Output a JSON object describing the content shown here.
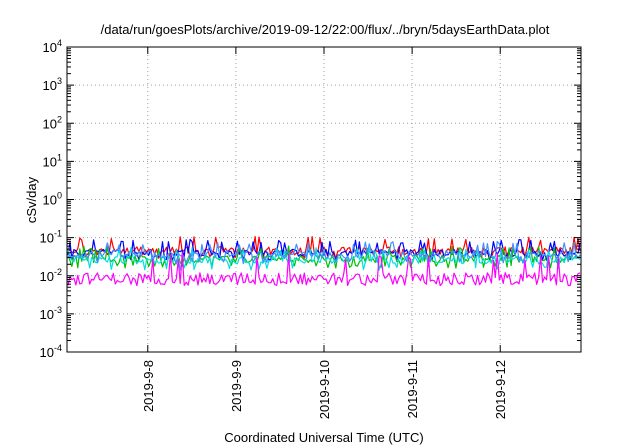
{
  "chart_data": {
    "type": "line",
    "title": "/data/run/goesPlots/archive/2019-09-12/22:00/flux/../bryn/5daysEarthData.plot",
    "xlabel": "Coordinated Universal Time (UTC)",
    "ylabel": "cSv/day",
    "yscale": "log",
    "ylim": [
      0.0001,
      10000
    ],
    "y_ticks": [
      {
        "exp": "-4",
        "value": 0.0001
      },
      {
        "exp": "-3",
        "value": 0.001
      },
      {
        "exp": "-2",
        "value": 0.01
      },
      {
        "exp": "-1",
        "value": 0.1
      },
      {
        "exp": "0",
        "value": 1
      },
      {
        "exp": "1",
        "value": 10
      },
      {
        "exp": "2",
        "value": 100
      },
      {
        "exp": "3",
        "value": 1000
      },
      {
        "exp": "4",
        "value": 10000
      }
    ],
    "xlim": [
      "2019-09-07 02:00",
      "2019-09-12 22:00"
    ],
    "x_ticks": [
      "2019-9-8",
      "2019-9-9",
      "2019-9-10",
      "2019-9-11",
      "2019-9-12"
    ],
    "grid": true,
    "series": [
      {
        "color": "#ff0000",
        "mean": 0.045,
        "low": 0.028,
        "high": 0.11
      },
      {
        "color": "#0000ff",
        "mean": 0.04,
        "low": 0.025,
        "high": 0.09
      },
      {
        "color": "#00c000",
        "mean": 0.028,
        "low": 0.016,
        "high": 0.06
      },
      {
        "color": "#00e0e0",
        "mean": 0.026,
        "low": 0.014,
        "high": 0.055
      },
      {
        "color": "#4090ff",
        "mean": 0.036,
        "low": 0.02,
        "high": 0.08
      },
      {
        "color": "#ff00ff",
        "mean": 0.0085,
        "low": 0.0055,
        "high": 0.04
      }
    ]
  }
}
